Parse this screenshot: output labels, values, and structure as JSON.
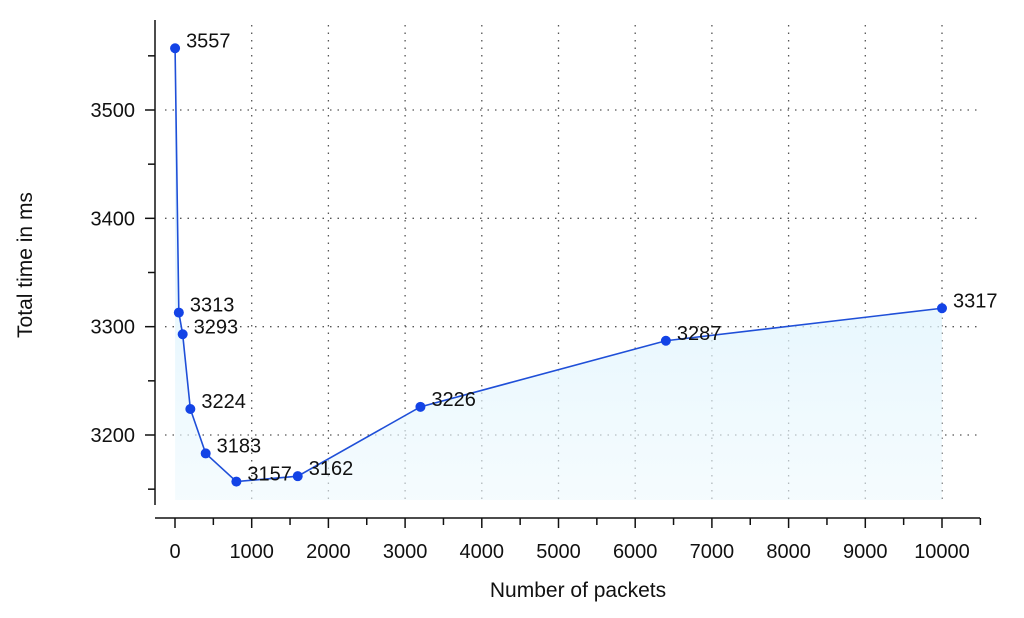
{
  "chart_data": {
    "type": "line",
    "xlabel": "Number of packets",
    "ylabel": "Total time in ms",
    "xlim": [
      -150,
      10500
    ],
    "ylim": [
      3120,
      3580
    ],
    "xticks": [
      0,
      1000,
      2000,
      3000,
      4000,
      5000,
      6000,
      7000,
      8000,
      9000,
      10000
    ],
    "xtick_labels": [
      "0",
      "1000",
      "2000",
      "3000",
      "4000",
      "5000",
      "6000",
      "7000",
      "8000",
      "9000",
      "10000"
    ],
    "yticks": [
      3200,
      3300,
      3400,
      3500
    ],
    "ytick_labels": [
      "3200",
      "3300",
      "3400",
      "3500"
    ],
    "grid": true,
    "fill_under": true,
    "series": [
      {
        "x": [
          1,
          50,
          100,
          200,
          400,
          800,
          1600,
          3200,
          6400,
          10000
        ],
        "y": [
          3557,
          3313,
          3293,
          3224,
          3183,
          3157,
          3162,
          3226,
          3287,
          3317
        ],
        "labels": [
          "3557",
          "3313",
          "3293",
          "3224",
          "3183",
          "3157",
          "3162",
          "3226",
          "3287",
          "3317"
        ]
      }
    ],
    "colors": {
      "line": "#1f4fd8",
      "marker": "#1343e6",
      "fill": "#cdeefb"
    }
  }
}
